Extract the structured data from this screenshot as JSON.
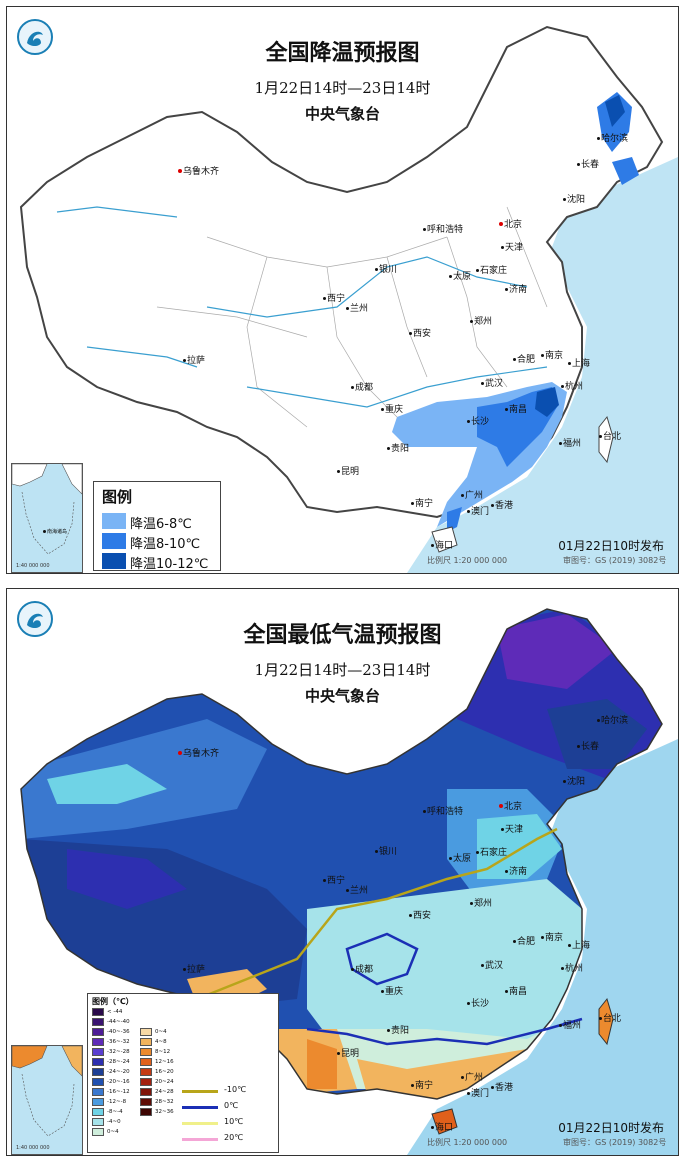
{
  "map1": {
    "title": "全国降温预报图",
    "period": "1月22日14时—23日14时",
    "org": "中央气象台",
    "legend_title": "图例",
    "legend": [
      {
        "label": "降温6-8℃",
        "color": "#7ab4f5"
      },
      {
        "label": "降温8-10℃",
        "color": "#2e7be6"
      },
      {
        "label": "降温10-12℃",
        "color": "#0a4fb0"
      }
    ],
    "release": "01月22日10时发布",
    "scale": "比例尺  1:20 000 000",
    "review_no": "审图号：GS (2019) 3082号",
    "cities": [
      "乌鲁木齐",
      "哈尔滨",
      "长春",
      "沈阳",
      "北京",
      "天津",
      "呼和浩特",
      "石家庄",
      "太原",
      "银川",
      "济南",
      "西宁",
      "兰州",
      "郑州",
      "西安",
      "合肥",
      "南京",
      "上海",
      "杭州",
      "成都",
      "武汉",
      "重庆",
      "长沙",
      "南昌",
      "拉萨",
      "贵阳",
      "福州",
      "台北",
      "昆明",
      "南宁",
      "广州",
      "香港",
      "澳门",
      "海口"
    ]
  },
  "map2": {
    "title": "全国最低气温预报图",
    "period": "1月22日14时—23日14时",
    "org": "中央气象台",
    "legend_title": "图例（℃）",
    "legend_left": [
      {
        "label": "< -44",
        "color": "#2a0a4a"
      },
      {
        "label": "-44~-40",
        "color": "#3a1470"
      },
      {
        "label": "-40~-36",
        "color": "#4d1d96"
      },
      {
        "label": "-36~-32",
        "color": "#5e2bb8"
      },
      {
        "label": "-32~-28",
        "color": "#5a3fd0"
      },
      {
        "label": "-28~-24",
        "color": "#2d2fb0"
      },
      {
        "label": "-24~-20",
        "color": "#1d3f95"
      },
      {
        "label": "-20~-16",
        "color": "#2050b0"
      },
      {
        "label": "-16~-12",
        "color": "#3a78cf"
      },
      {
        "label": "-12~-8",
        "color": "#4a9be0"
      },
      {
        "label": "-8~-4",
        "color": "#6fd3e6"
      },
      {
        "label": "-4~0",
        "color": "#a6e3ea"
      },
      {
        "label": "0~4",
        "color": "#cfeedc"
      }
    ],
    "legend_right": [
      {
        "label": "0~4",
        "color": "#f7d9a6"
      },
      {
        "label": "4~8",
        "color": "#f2b45e"
      },
      {
        "label": "8~12",
        "color": "#ec8a2e"
      },
      {
        "label": "12~16",
        "color": "#e0601b"
      },
      {
        "label": "16~20",
        "color": "#c43a14"
      },
      {
        "label": "20~24",
        "color": "#a3200f"
      },
      {
        "label": "24~28",
        "color": "#7f1409"
      },
      {
        "label": "28~32",
        "color": "#5e0c05"
      },
      {
        "label": "32~36",
        "color": "#3e0502"
      }
    ],
    "isolines": [
      {
        "label": "-10℃",
        "color": "#b8a51a"
      },
      {
        "label": "0℃",
        "color": "#1b2fb5"
      },
      {
        "label": "10℃",
        "color": "#f0f08a"
      },
      {
        "label": "20℃",
        "color": "#f4a6d6"
      }
    ],
    "release": "01月22日10时发布",
    "scale": "比例尺  1:20 000 000",
    "review_no": "审图号：GS (2019) 3082号",
    "cities": [
      "乌鲁木齐",
      "哈尔滨",
      "长春",
      "沈阳",
      "北京",
      "天津",
      "呼和浩特",
      "石家庄",
      "太原",
      "银川",
      "济南",
      "西宁",
      "兰州",
      "郑州",
      "西安",
      "合肥",
      "南京",
      "上海",
      "杭州",
      "成都",
      "武汉",
      "重庆",
      "长沙",
      "南昌",
      "拉萨",
      "贵阳",
      "福州",
      "台北",
      "昆明",
      "南宁",
      "广州",
      "香港",
      "澳门",
      "海口"
    ]
  },
  "inset_labels": [
    "南海诸岛"
  ],
  "inset_scale": "1:40 000 000"
}
